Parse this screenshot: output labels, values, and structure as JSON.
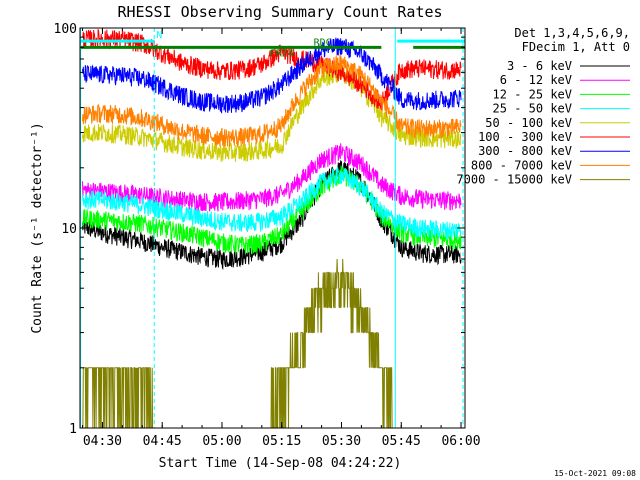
{
  "chart_data": {
    "type": "line",
    "title": "RHESSI Observing Summary Count Rates",
    "xlabel": "Start Time (14-Sep-08 04:24:22)",
    "ylabel": "Count Rate (s⁻¹ detector⁻¹)",
    "x_unit": "UT time, 14-Sep-2008",
    "x_range": [
      "04:24:22",
      "06:01:00"
    ],
    "ylim": [
      1,
      100
    ],
    "yscale": "log",
    "x_ticks": [
      "04:30",
      "04:45",
      "05:00",
      "05:15",
      "05:30",
      "05:45",
      "06:00"
    ],
    "y_ticks": [
      "1",
      "10",
      "100"
    ],
    "legend_header": [
      "Det 1,3,4,5,6,9,",
      "FDecim 1, Att 0"
    ],
    "legend_position": "right",
    "series": [
      {
        "name": "3 - 6 keV",
        "color": "#000000",
        "points": [
          [
            "04:25",
            10.2
          ],
          [
            "04:30",
            9.5
          ],
          [
            "04:35",
            9.0
          ],
          [
            "04:40",
            8.6
          ],
          [
            "04:45",
            8.0
          ],
          [
            "04:50",
            7.6
          ],
          [
            "04:55",
            7.2
          ],
          [
            "05:00",
            7.0
          ],
          [
            "05:05",
            7.2
          ],
          [
            "05:10",
            7.6
          ],
          [
            "05:15",
            8.4
          ],
          [
            "05:20",
            11.0
          ],
          [
            "05:25",
            16.5
          ],
          [
            "05:30",
            20.0
          ],
          [
            "05:35",
            17.0
          ],
          [
            "05:40",
            11.0
          ],
          [
            "05:45",
            8.0
          ],
          [
            "05:50",
            7.5
          ],
          [
            "05:55",
            7.4
          ],
          [
            "06:00",
            7.4
          ]
        ]
      },
      {
        "name": "6 - 12 keV",
        "color": "#ff00ff",
        "points": [
          [
            "04:25",
            15.5
          ],
          [
            "04:30",
            15.3
          ],
          [
            "04:35",
            15.0
          ],
          [
            "04:40",
            14.6
          ],
          [
            "04:45",
            14.2
          ],
          [
            "04:50",
            13.8
          ],
          [
            "04:55",
            13.6
          ],
          [
            "05:00",
            13.5
          ],
          [
            "05:05",
            13.7
          ],
          [
            "05:10",
            14.0
          ],
          [
            "05:15",
            14.8
          ],
          [
            "05:20",
            17.5
          ],
          [
            "05:25",
            22.0
          ],
          [
            "05:30",
            24.0
          ],
          [
            "05:35",
            21.0
          ],
          [
            "05:40",
            16.5
          ],
          [
            "05:45",
            14.5
          ],
          [
            "05:50",
            14.0
          ],
          [
            "05:55",
            13.8
          ],
          [
            "06:00",
            13.8
          ]
        ]
      },
      {
        "name": "12 - 25 keV",
        "color": "#00ff00",
        "points": [
          [
            "04:25",
            11.2
          ],
          [
            "04:30",
            11.0
          ],
          [
            "04:35",
            10.8
          ],
          [
            "04:40",
            10.5
          ],
          [
            "04:45",
            10.0
          ],
          [
            "04:50",
            9.5
          ],
          [
            "04:55",
            9.0
          ],
          [
            "05:00",
            8.5
          ],
          [
            "05:05",
            8.2
          ],
          [
            "05:10",
            8.4
          ],
          [
            "05:15",
            9.3
          ],
          [
            "05:20",
            12.0
          ],
          [
            "05:25",
            16.0
          ],
          [
            "05:30",
            18.5
          ],
          [
            "05:35",
            16.0
          ],
          [
            "05:40",
            11.5
          ],
          [
            "05:45",
            9.5
          ],
          [
            "05:50",
            9.0
          ],
          [
            "05:55",
            8.8
          ],
          [
            "06:00",
            8.8
          ]
        ]
      },
      {
        "name": "25 - 50 keV",
        "color": "#00ffff",
        "points": [
          [
            "04:25",
            14.0
          ],
          [
            "04:30",
            13.8
          ],
          [
            "04:35",
            13.5
          ],
          [
            "04:40",
            13.0
          ],
          [
            "04:45",
            12.4
          ],
          [
            "04:50",
            11.8
          ],
          [
            "04:55",
            11.2
          ],
          [
            "05:00",
            10.8
          ],
          [
            "05:05",
            10.6
          ],
          [
            "05:10",
            10.8
          ],
          [
            "05:15",
            11.5
          ],
          [
            "05:20",
            13.5
          ],
          [
            "05:25",
            17.0
          ],
          [
            "05:30",
            18.5
          ],
          [
            "05:35",
            16.0
          ],
          [
            "05:40",
            12.0
          ],
          [
            "05:45",
            10.5
          ],
          [
            "05:50",
            10.0
          ],
          [
            "05:55",
            9.8
          ],
          [
            "06:00",
            9.8
          ]
        ]
      },
      {
        "name": "50 - 100 keV",
        "color": "#cccc00",
        "points": [
          [
            "04:25",
            30.0
          ],
          [
            "04:30",
            30.0
          ],
          [
            "04:35",
            29.5
          ],
          [
            "04:40",
            28.5
          ],
          [
            "04:45",
            27.0
          ],
          [
            "04:50",
            25.5
          ],
          [
            "04:55",
            24.5
          ],
          [
            "05:00",
            24.0
          ],
          [
            "05:05",
            24.0
          ],
          [
            "05:10",
            24.5
          ],
          [
            "05:15",
            26.0
          ],
          [
            "05:20",
            40.0
          ],
          [
            "05:25",
            56.0
          ],
          [
            "05:30",
            60.0
          ],
          [
            "05:35",
            50.0
          ],
          [
            "05:40",
            36.0
          ],
          [
            "05:45",
            29.0
          ],
          [
            "05:50",
            28.5
          ],
          [
            "05:55",
            28.0
          ],
          [
            "06:00",
            28.0
          ]
        ]
      },
      {
        "name": "100 - 300 keV",
        "color": "#ff0000",
        "points": [
          [
            "04:25",
            88.0
          ],
          [
            "04:30",
            89.0
          ],
          [
            "04:35",
            88.0
          ],
          [
            "04:40",
            84.0
          ],
          [
            "04:45",
            75.0
          ],
          [
            "04:50",
            67.0
          ],
          [
            "04:55",
            63.0
          ],
          [
            "05:00",
            61.0
          ],
          [
            "05:05",
            62.0
          ],
          [
            "05:10",
            66.0
          ],
          [
            "05:15",
            76.0
          ],
          [
            "05:20",
            70.0
          ],
          [
            "05:25",
            66.0
          ],
          [
            "05:30",
            60.0
          ],
          [
            "05:35",
            52.0
          ],
          [
            "05:40",
            42.0
          ],
          [
            "05:45",
            62.0
          ],
          [
            "05:50",
            63.0
          ],
          [
            "05:55",
            62.0
          ],
          [
            "06:00",
            62.0
          ]
        ]
      },
      {
        "name": "300 - 800 keV",
        "color": "#0000ff",
        "points": [
          [
            "04:25",
            59.0
          ],
          [
            "04:30",
            58.5
          ],
          [
            "04:35",
            58.0
          ],
          [
            "04:40",
            56.0
          ],
          [
            "04:45",
            51.0
          ],
          [
            "04:50",
            46.0
          ],
          [
            "04:55",
            43.0
          ],
          [
            "05:00",
            42.0
          ],
          [
            "05:05",
            42.5
          ],
          [
            "05:10",
            45.0
          ],
          [
            "05:15",
            52.0
          ],
          [
            "05:20",
            65.0
          ],
          [
            "05:25",
            78.0
          ],
          [
            "05:30",
            82.0
          ],
          [
            "05:35",
            74.0
          ],
          [
            "05:40",
            58.0
          ],
          [
            "05:45",
            44.0
          ],
          [
            "05:50",
            43.5
          ],
          [
            "05:55",
            44.0
          ],
          [
            "06:00",
            45.0
          ]
        ]
      },
      {
        "name": "800 - 7000 keV",
        "color": "#ff8000",
        "points": [
          [
            "04:25",
            37.0
          ],
          [
            "04:30",
            37.5
          ],
          [
            "04:35",
            37.0
          ],
          [
            "04:40",
            35.5
          ],
          [
            "04:45",
            33.0
          ],
          [
            "04:50",
            30.5
          ],
          [
            "04:55",
            29.0
          ],
          [
            "05:00",
            28.5
          ],
          [
            "05:05",
            28.5
          ],
          [
            "05:10",
            29.5
          ],
          [
            "05:15",
            32.5
          ],
          [
            "05:20",
            48.0
          ],
          [
            "05:25",
            63.0
          ],
          [
            "05:30",
            67.0
          ],
          [
            "05:35",
            58.0
          ],
          [
            "05:40",
            43.0
          ],
          [
            "05:45",
            32.0
          ],
          [
            "05:50",
            31.5
          ],
          [
            "05:55",
            31.5
          ],
          [
            "06:00",
            32.0
          ]
        ]
      },
      {
        "name": "7000 - 15000 keV",
        "color": "#808000",
        "points": [
          [
            "04:25",
            1.8
          ],
          [
            "04:30",
            1.8
          ],
          [
            "04:35",
            1.7
          ],
          [
            "04:40",
            1.5
          ],
          [
            "04:45",
            1.0
          ],
          [
            "04:50",
            1.0
          ],
          [
            "04:55",
            1.0
          ],
          [
            "05:00",
            1.0
          ],
          [
            "05:05",
            1.0
          ],
          [
            "05:10",
            1.0
          ],
          [
            "05:15",
            1.6
          ],
          [
            "05:20",
            2.6
          ],
          [
            "05:25",
            4.6
          ],
          [
            "05:30",
            5.4
          ],
          [
            "05:35",
            3.8
          ],
          [
            "05:40",
            1.8
          ],
          [
            "05:45",
            1.0
          ],
          [
            "05:50",
            1.0
          ],
          [
            "05:55",
            1.0
          ],
          [
            "06:00",
            1.0
          ]
        ]
      }
    ],
    "annotations": [
      {
        "text": "N",
        "color": "#00ffff",
        "anchor": "04:43"
      },
      {
        "text": "RDC",
        "color": "#008000",
        "anchor": "05:23"
      },
      {
        "text": "FR24",
        "color": "#008000",
        "anchor": "05:12"
      }
    ],
    "attenuator_bar": {
      "color": "#008000",
      "value": 80,
      "segments": [
        [
          "04:24:22",
          "05:40"
        ],
        [
          "05:48",
          "06:01"
        ]
      ]
    },
    "data_gap_bar": {
      "color": "#00ffff",
      "value": 86,
      "segments": [
        [
          "04:24:22",
          "04:43"
        ],
        [
          "05:44",
          "06:01"
        ]
      ]
    },
    "vertical_markers": [
      {
        "time": "04:24:30",
        "style": "solid"
      },
      {
        "time": "04:43:00",
        "style": "dashed"
      },
      {
        "time": "05:43:30",
        "style": "solid"
      },
      {
        "time": "06:00:30",
        "style": "dashed"
      }
    ],
    "timestamp": "15-Oct-2021 09:08"
  }
}
